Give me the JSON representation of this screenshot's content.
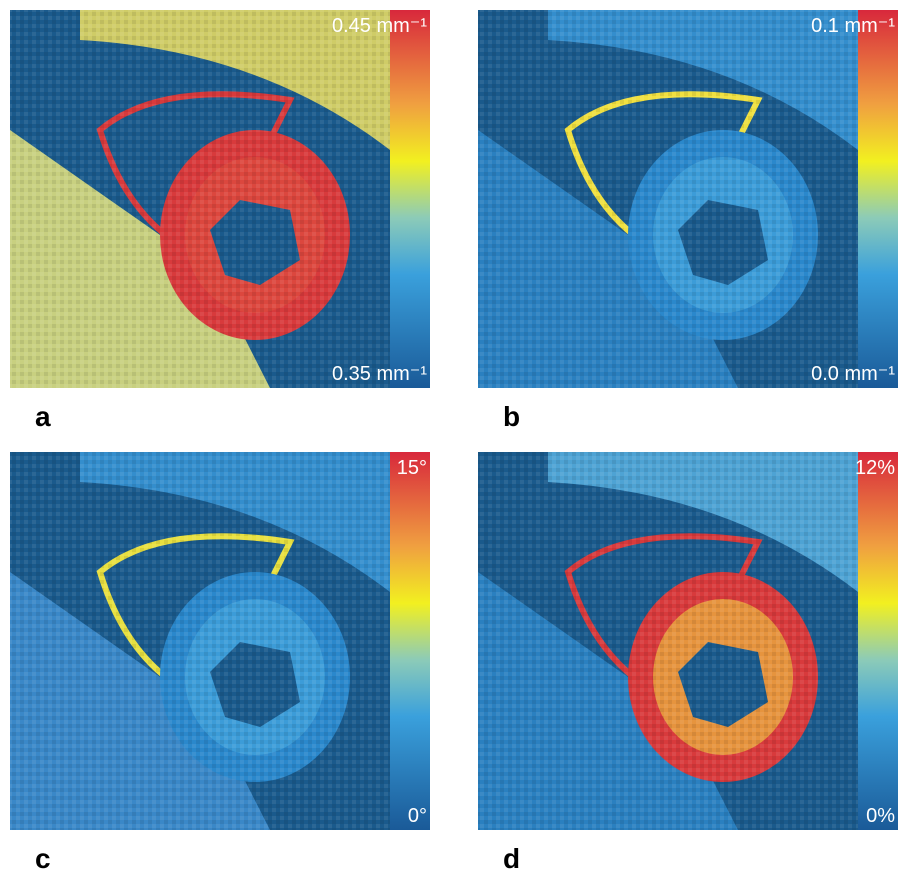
{
  "panels": [
    {
      "label": "a",
      "scale_max": "0.45 mm⁻¹",
      "scale_min": "0.35 mm⁻¹"
    },
    {
      "label": "b",
      "scale_max": "0.1 mm⁻¹",
      "scale_min": "0.0 mm⁻¹"
    },
    {
      "label": "c",
      "scale_max": "15°",
      "scale_min": "0°"
    },
    {
      "label": "d",
      "scale_max": "12%",
      "scale_min": "0%"
    }
  ]
}
